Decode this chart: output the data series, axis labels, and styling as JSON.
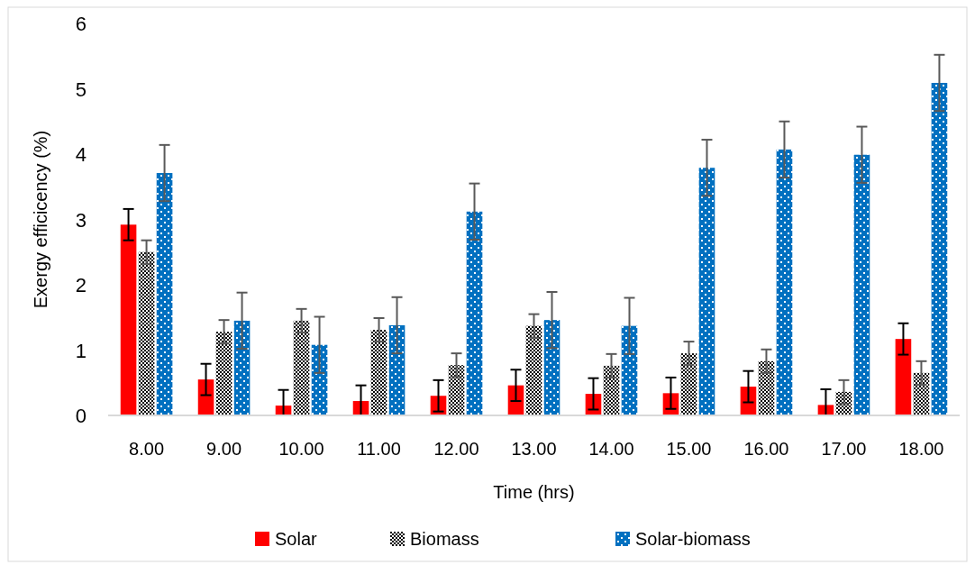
{
  "chart_data": {
    "type": "bar",
    "xlabel": "Time (hrs)",
    "ylabel": "Exergy efficicency (%)",
    "categories": [
      "8.00",
      "9.00",
      "10.00",
      "11.00",
      "12.00",
      "13.00",
      "14.00",
      "15.00",
      "16.00",
      "17.00",
      "18.00"
    ],
    "series": [
      {
        "name": "Solar",
        "color": "#ff0000",
        "values": [
          2.92,
          0.55,
          0.15,
          0.22,
          0.3,
          0.46,
          0.33,
          0.34,
          0.44,
          0.16,
          1.17
        ],
        "errors": [
          0.24,
          0.24,
          [
            0,
            0.39
          ],
          [
            0,
            0.46
          ],
          0.24,
          0.24,
          0.24,
          0.24,
          0.24,
          [
            0,
            0.4
          ],
          0.24
        ]
      },
      {
        "name": "Biomass",
        "color": "#000000",
        "values": [
          2.5,
          1.28,
          1.45,
          1.31,
          0.77,
          1.37,
          0.76,
          0.95,
          0.83,
          0.36,
          0.65
        ],
        "errors": [
          0.18,
          0.18,
          0.18,
          0.18,
          0.18,
          0.18,
          0.18,
          0.18,
          0.18,
          0.18,
          0.18
        ]
      },
      {
        "name": "Solar-biomass",
        "color": "#0070c0",
        "values": [
          3.71,
          1.45,
          1.08,
          1.38,
          3.12,
          1.46,
          1.37,
          3.79,
          4.07,
          3.99,
          5.09
        ],
        "errors": [
          0.43,
          0.43,
          0.43,
          0.43,
          0.43,
          0.43,
          0.43,
          0.43,
          0.43,
          0.43,
          0.43
        ]
      }
    ],
    "ylim": [
      0,
      6
    ],
    "yticks": [
      0,
      1,
      2,
      3,
      4,
      5,
      6
    ],
    "grid": false,
    "legend": "bottom"
  }
}
